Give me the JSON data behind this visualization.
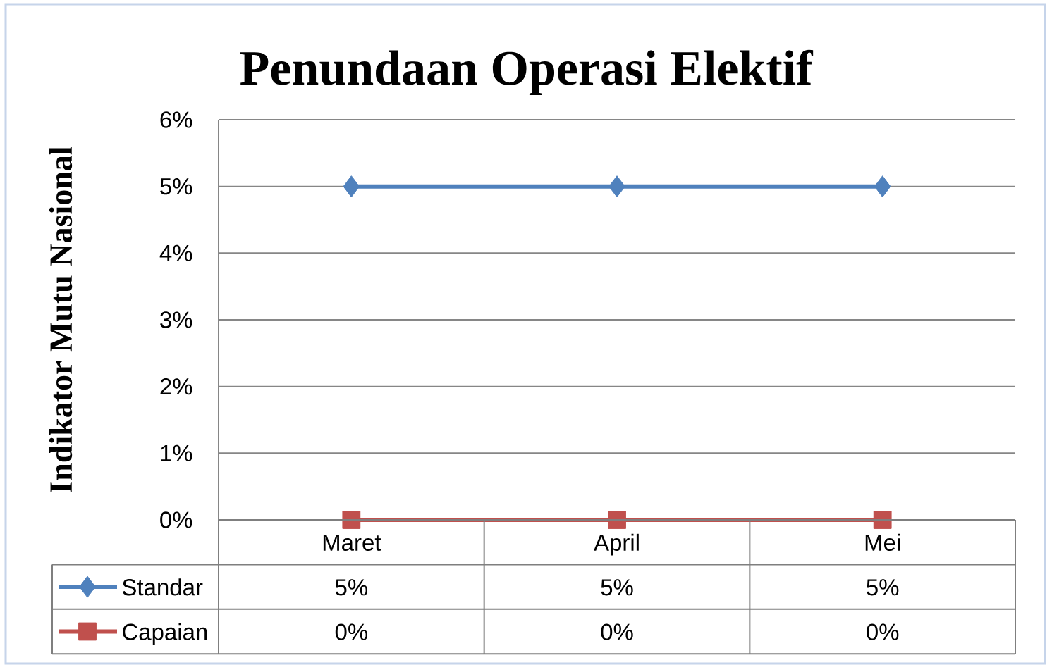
{
  "chart_data": {
    "type": "line",
    "title": "Penundaan Operasi Elektif",
    "ylabel": "Indikator Mutu Nasional",
    "categories": [
      "Maret",
      "April",
      "Mei"
    ],
    "series": [
      {
        "name": "Standar",
        "color": "#4f81bd",
        "marker": "diamond",
        "values": [
          5,
          5,
          5
        ],
        "value_labels": [
          "5%",
          "5%",
          "5%"
        ]
      },
      {
        "name": "Capaian",
        "color": "#c0504d",
        "marker": "square",
        "values": [
          0,
          0,
          0
        ],
        "value_labels": [
          "0%",
          "0%",
          "0%"
        ]
      }
    ],
    "ylim": [
      0,
      6
    ],
    "yticks": [
      {
        "value": 0,
        "label": "0%"
      },
      {
        "value": 1,
        "label": "1%"
      },
      {
        "value": 2,
        "label": "2%"
      },
      {
        "value": 3,
        "label": "3%"
      },
      {
        "value": 4,
        "label": "4%"
      },
      {
        "value": 5,
        "label": "5%"
      },
      {
        "value": 6,
        "label": "6%"
      }
    ],
    "grid": "y",
    "legend": "bottom"
  }
}
